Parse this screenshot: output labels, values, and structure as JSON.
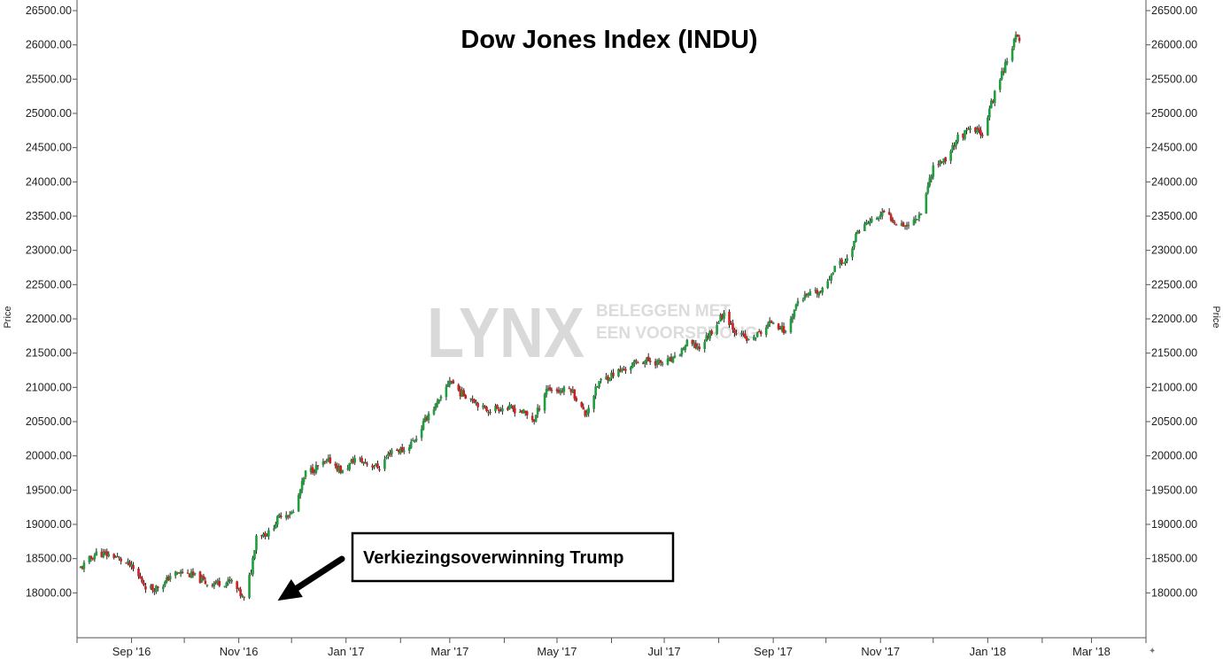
{
  "chart_data": {
    "type": "candlestick",
    "title": "Dow Jones Index (INDU)",
    "ylabel_left": "Price",
    "ylabel_right": "Price",
    "xlabel": "",
    "ylim": [
      17500,
      26500
    ],
    "y_ticks": [
      "26500.00",
      "26000.00",
      "25500.00",
      "25000.00",
      "24500.00",
      "24000.00",
      "23500.00",
      "23000.00",
      "22500.00",
      "22000.00",
      "21500.00",
      "21000.00",
      "20500.00",
      "20000.00",
      "19500.00",
      "19000.00",
      "18500.00",
      "18000.00"
    ],
    "x_ticks": [
      "Sep '16",
      "Nov '16",
      "Jan '17",
      "Mar '17",
      "May '17",
      "Jul '17",
      "Sep '17",
      "Nov '17",
      "Jan '18",
      "Mar '18"
    ],
    "x_range": [
      "2016-08-01",
      "2018-04-01"
    ],
    "grid": false,
    "colors": {
      "up": "#1e9e3c",
      "down": "#d11f1f",
      "wick": "#222222",
      "axis": "#555555"
    },
    "watermark": {
      "brand": "LYNX",
      "tagline": [
        "BELEGGEN MET",
        "EEN VOORSPRONG"
      ]
    },
    "annotation": {
      "text": "Verkiezingsoverwinning Trump",
      "target_date": "2016-11-08",
      "target_value": 17900
    },
    "series": [
      {
        "values": [
          [
            "2016-08-03",
            18360
          ],
          [
            "2016-08-12",
            18580
          ],
          [
            "2016-08-22",
            18540
          ],
          [
            "2016-08-31",
            18400
          ],
          [
            "2016-09-09",
            18100
          ],
          [
            "2016-09-13",
            18060
          ],
          [
            "2016-09-20",
            18140
          ],
          [
            "2016-09-23",
            18260
          ],
          [
            "2016-09-30",
            18300
          ],
          [
            "2016-10-07",
            18240
          ],
          [
            "2016-10-14",
            18140
          ],
          [
            "2016-10-21",
            18150
          ],
          [
            "2016-10-28",
            18160
          ],
          [
            "2016-11-04",
            17900
          ],
          [
            "2016-11-08",
            18330
          ],
          [
            "2016-11-11",
            18850
          ],
          [
            "2016-11-18",
            18870
          ],
          [
            "2016-11-25",
            19150
          ],
          [
            "2016-12-02",
            19170
          ],
          [
            "2016-12-09",
            19750
          ],
          [
            "2016-12-16",
            19840
          ],
          [
            "2016-12-23",
            19930
          ],
          [
            "2016-12-30",
            19760
          ],
          [
            "2017-01-06",
            19960
          ],
          [
            "2017-01-13",
            19890
          ],
          [
            "2017-01-20",
            19830
          ],
          [
            "2017-01-27",
            20090
          ],
          [
            "2017-02-03",
            20080
          ],
          [
            "2017-02-10",
            20270
          ],
          [
            "2017-02-17",
            20620
          ],
          [
            "2017-02-24",
            20820
          ],
          [
            "2017-03-01",
            21120
          ],
          [
            "2017-03-07",
            20920
          ],
          [
            "2017-03-14",
            20840
          ],
          [
            "2017-03-21",
            20670
          ],
          [
            "2017-03-28",
            20700
          ],
          [
            "2017-04-04",
            20690
          ],
          [
            "2017-04-11",
            20650
          ],
          [
            "2017-04-18",
            20520
          ],
          [
            "2017-04-25",
            20990
          ],
          [
            "2017-05-02",
            20950
          ],
          [
            "2017-05-09",
            20980
          ],
          [
            "2017-05-17",
            20600
          ],
          [
            "2017-05-25",
            21080
          ],
          [
            "2017-06-02",
            21200
          ],
          [
            "2017-06-09",
            21270
          ],
          [
            "2017-06-16",
            21380
          ],
          [
            "2017-06-23",
            21390
          ],
          [
            "2017-06-30",
            21350
          ],
          [
            "2017-07-07",
            21410
          ],
          [
            "2017-07-14",
            21640
          ],
          [
            "2017-07-21",
            21580
          ],
          [
            "2017-07-28",
            21830
          ],
          [
            "2017-08-04",
            22090
          ],
          [
            "2017-08-10",
            21840
          ],
          [
            "2017-08-18",
            21670
          ],
          [
            "2017-08-25",
            21810
          ],
          [
            "2017-09-01",
            21980
          ],
          [
            "2017-09-08",
            21800
          ],
          [
            "2017-09-15",
            22270
          ],
          [
            "2017-09-22",
            22350
          ],
          [
            "2017-09-29",
            22400
          ],
          [
            "2017-10-06",
            22770
          ],
          [
            "2017-10-13",
            22870
          ],
          [
            "2017-10-20",
            23330
          ],
          [
            "2017-10-27",
            23430
          ],
          [
            "2017-11-03",
            23540
          ],
          [
            "2017-11-10",
            23420
          ],
          [
            "2017-11-17",
            23360
          ],
          [
            "2017-11-24",
            23560
          ],
          [
            "2017-12-01",
            24230
          ],
          [
            "2017-12-08",
            24330
          ],
          [
            "2017-12-15",
            24650
          ],
          [
            "2017-12-22",
            24750
          ],
          [
            "2017-12-29",
            24720
          ],
          [
            "2018-01-05",
            25300
          ],
          [
            "2018-01-12",
            25800
          ],
          [
            "2018-01-17",
            26110
          ],
          [
            "2018-01-19",
            26070
          ]
        ]
      }
    ]
  }
}
